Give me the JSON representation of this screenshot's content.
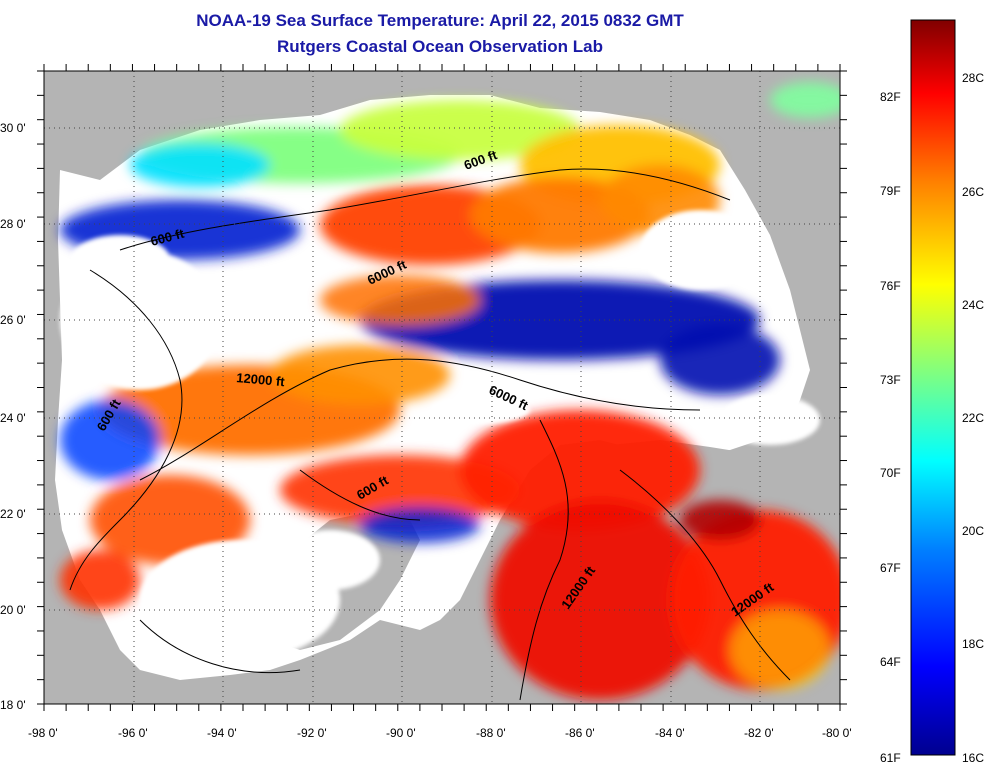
{
  "title": {
    "line1": "NOAA-19 Sea Surface Temperature:  April 22, 2015 0832 GMT",
    "line2": "Rutgers Coastal Ocean Observation Lab"
  },
  "axes": {
    "x_ticks": [
      "-98 0'",
      "-96 0'",
      "-94 0'",
      "-92 0'",
      "-90 0'",
      "-88 0'",
      "-86 0'",
      "-84 0'",
      "-82 0'",
      "-80 0'"
    ],
    "y_ticks": [
      "30 0'",
      "28 0'",
      "26 0'",
      "24 0'",
      "22 0'",
      "20 0'",
      "18 0'"
    ]
  },
  "contour_labels": [
    "600 ft",
    "600 ft",
    "6000 ft",
    "12000 ft",
    "6000 ft",
    "600 ft",
    "600 ft",
    "12000 ft",
    "12000 ft"
  ],
  "colorbar": {
    "labels_f": [
      "82F",
      "79F",
      "76F",
      "73F",
      "70F",
      "67F",
      "64F",
      "61F"
    ],
    "labels_c": [
      "28C",
      "26C",
      "24C",
      "22C",
      "20C",
      "18C",
      "16C"
    ],
    "colors": [
      "#00008f",
      "#0000ff",
      "#0080ff",
      "#00ffff",
      "#80ff80",
      "#ffff00",
      "#ff8000",
      "#ff0000",
      "#800000"
    ]
  },
  "colors": {
    "land": "#b4b4b4",
    "nodata": "#ffffff",
    "title": "#1a1aa6"
  }
}
